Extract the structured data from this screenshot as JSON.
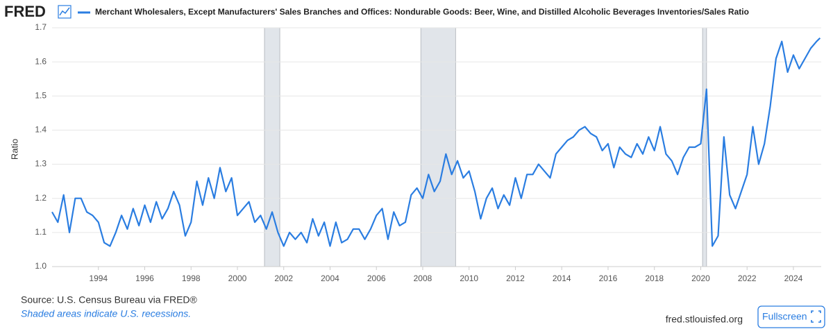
{
  "ui": {
    "logo": "FRED",
    "source": "Source: U.S. Census Bureau via FRED®",
    "recession_note": "Shaded areas indicate U.S. recessions.",
    "site": "fred.stlouisfed.org",
    "fullscreen": "Fullscreen"
  },
  "chart_data": {
    "type": "line",
    "title": "Merchant Wholesalers, Except Manufacturers' Sales Branches and Offices: Nondurable Goods: Beer, Wine, and Distilled Alcoholic Beverages Inventories/Sales Ratio",
    "y_label": "Ratio",
    "xlim": [
      1992,
      2025.2
    ],
    "xticks": [
      1994,
      1996,
      1998,
      2000,
      2002,
      2004,
      2006,
      2008,
      2010,
      2012,
      2014,
      2016,
      2018,
      2020,
      2022,
      2024
    ],
    "ylim": [
      1,
      1.7
    ],
    "yticks": [
      {
        "value": 1,
        "label": "1.0"
      },
      1.1,
      1.2,
      1.3,
      1.4,
      1.5,
      1.6,
      1.7
    ],
    "grid": true,
    "recessions": [
      [
        2001.17,
        2001.83
      ],
      [
        2007.92,
        2009.42
      ],
      [
        2020.08,
        2020.25
      ]
    ],
    "x": [
      1992,
      1992.25,
      1992.5,
      1992.75,
      1993,
      1993.25,
      1993.5,
      1993.75,
      1994,
      1994.25,
      1994.5,
      1994.75,
      1995,
      1995.25,
      1995.5,
      1995.75,
      1996,
      1996.25,
      1996.5,
      1996.75,
      1997,
      1997.25,
      1997.5,
      1997.75,
      1998,
      1998.25,
      1998.5,
      1998.75,
      1999,
      1999.25,
      1999.5,
      1999.75,
      2000,
      2000.25,
      2000.5,
      2000.75,
      2001,
      2001.25,
      2001.5,
      2001.75,
      2002,
      2002.25,
      2002.5,
      2002.75,
      2003,
      2003.25,
      2003.5,
      2003.75,
      2004,
      2004.25,
      2004.5,
      2004.75,
      2005,
      2005.25,
      2005.5,
      2005.75,
      2006,
      2006.25,
      2006.5,
      2006.75,
      2007,
      2007.25,
      2007.5,
      2007.75,
      2008,
      2008.25,
      2008.5,
      2008.75,
      2009,
      2009.25,
      2009.5,
      2009.75,
      2010,
      2010.25,
      2010.5,
      2010.75,
      2011,
      2011.25,
      2011.5,
      2011.75,
      2012,
      2012.25,
      2012.5,
      2012.75,
      2013,
      2013.25,
      2013.5,
      2013.75,
      2014,
      2014.25,
      2014.5,
      2014.75,
      2015,
      2015.25,
      2015.5,
      2015.75,
      2016,
      2016.25,
      2016.5,
      2016.75,
      2017,
      2017.25,
      2017.5,
      2017.75,
      2018,
      2018.25,
      2018.5,
      2018.75,
      2019,
      2019.25,
      2019.5,
      2019.75,
      2020,
      2020.25,
      2020.5,
      2020.75,
      2021,
      2021.25,
      2021.5,
      2021.75,
      2022,
      2022.25,
      2022.5,
      2022.75,
      2023,
      2023.25,
      2023.5,
      2023.75,
      2024,
      2024.25,
      2024.5,
      2024.75,
      2025,
      2025.15
    ],
    "series": [
      {
        "name": "Merchant Wholesalers, Except Manufacturers' Sales Branches and Offices: Nondurable Goods: Beer, Wine, and Distilled Alcoholic Beverages Inventories/Sales Ratio",
        "color": "#2a7de1",
        "values": [
          1.16,
          1.13,
          1.21,
          1.1,
          1.2,
          1.2,
          1.16,
          1.15,
          1.13,
          1.07,
          1.06,
          1.1,
          1.15,
          1.11,
          1.17,
          1.12,
          1.18,
          1.13,
          1.19,
          1.14,
          1.17,
          1.22,
          1.18,
          1.09,
          1.13,
          1.25,
          1.18,
          1.26,
          1.2,
          1.29,
          1.22,
          1.26,
          1.15,
          1.17,
          1.19,
          1.13,
          1.15,
          1.11,
          1.16,
          1.1,
          1.06,
          1.1,
          1.08,
          1.1,
          1.07,
          1.14,
          1.09,
          1.13,
          1.06,
          1.13,
          1.07,
          1.08,
          1.11,
          1.11,
          1.08,
          1.11,
          1.15,
          1.17,
          1.08,
          1.16,
          1.12,
          1.13,
          1.21,
          1.23,
          1.2,
          1.27,
          1.22,
          1.25,
          1.33,
          1.27,
          1.31,
          1.26,
          1.28,
          1.22,
          1.14,
          1.2,
          1.23,
          1.17,
          1.21,
          1.18,
          1.26,
          1.2,
          1.27,
          1.27,
          1.3,
          1.28,
          1.26,
          1.33,
          1.35,
          1.37,
          1.38,
          1.4,
          1.41,
          1.39,
          1.38,
          1.34,
          1.36,
          1.29,
          1.35,
          1.33,
          1.32,
          1.36,
          1.33,
          1.38,
          1.34,
          1.41,
          1.33,
          1.31,
          1.27,
          1.32,
          1.35,
          1.35,
          1.36,
          1.52,
          1.06,
          1.09,
          1.38,
          1.21,
          1.17,
          1.22,
          1.27,
          1.41,
          1.3,
          1.36,
          1.47,
          1.61,
          1.66,
          1.57,
          1.62,
          1.58,
          1.61,
          1.64,
          1.66,
          1.67
        ]
      }
    ]
  }
}
